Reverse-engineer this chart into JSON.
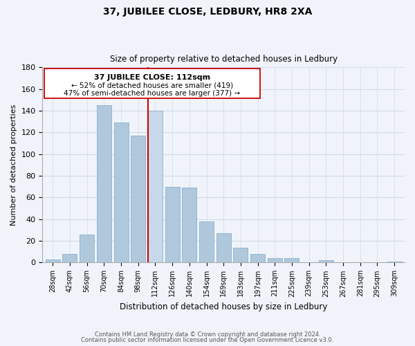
{
  "title": "37, JUBILEE CLOSE, LEDBURY, HR8 2XA",
  "subtitle": "Size of property relative to detached houses in Ledbury",
  "xlabel": "Distribution of detached houses by size in Ledbury",
  "ylabel": "Number of detached properties",
  "bar_labels": [
    "28sqm",
    "42sqm",
    "56sqm",
    "70sqm",
    "84sqm",
    "98sqm",
    "112sqm",
    "126sqm",
    "140sqm",
    "154sqm",
    "169sqm",
    "183sqm",
    "197sqm",
    "211sqm",
    "225sqm",
    "239sqm",
    "253sqm",
    "267sqm",
    "281sqm",
    "295sqm",
    "309sqm"
  ],
  "bar_values": [
    3,
    8,
    26,
    145,
    129,
    117,
    140,
    70,
    69,
    38,
    27,
    14,
    8,
    4,
    4,
    0,
    2,
    0,
    0,
    0,
    1
  ],
  "highlight_index": 6,
  "highlight_color": "#c8d8eb",
  "normal_color": "#b0c8dc",
  "highlight_line_color": "#cc0000",
  "ylim": [
    0,
    180
  ],
  "yticks": [
    0,
    20,
    40,
    60,
    80,
    100,
    120,
    140,
    160,
    180
  ],
  "annotation_line1": "37 JUBILEE CLOSE: 112sqm",
  "annotation_line2": "← 52% of detached houses are smaller (419)",
  "annotation_line3": "47% of semi-detached houses are larger (377) →",
  "footer_line1": "Contains HM Land Registry data © Crown copyright and database right 2024.",
  "footer_line2": "Contains public sector information licensed under the Open Government Licence v3.0.",
  "bg_color": "#f0f4fa",
  "grid_color": "#d0dae8"
}
